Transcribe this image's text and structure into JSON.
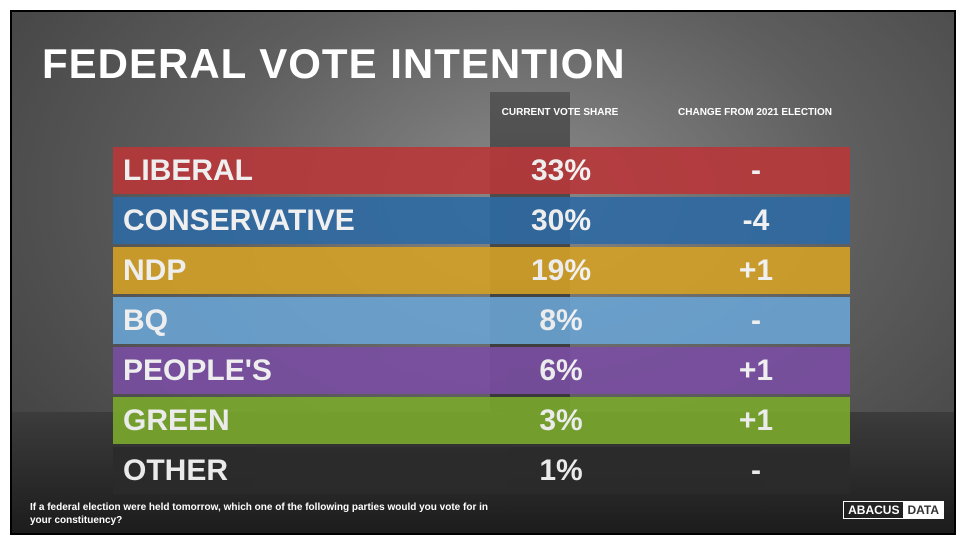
{
  "header": {
    "title": "FEDERAL VOTE INTENTION"
  },
  "table": {
    "columns": [
      "CURRENT VOTE SHARE",
      "CHANGE FROM 2021 ELECTION"
    ],
    "rows": [
      {
        "party": "LIBERAL",
        "share": "33%",
        "change": "-",
        "color": "#b9373a"
      },
      {
        "party": "CONSERVATIVE",
        "share": "30%",
        "change": "-4",
        "color": "#2e6aa3"
      },
      {
        "party": "NDP",
        "share": "19%",
        "change": "+1",
        "color": "#d4a126"
      },
      {
        "party": "BQ",
        "share": "8%",
        "change": "-",
        "color": "#6aa4d4"
      },
      {
        "party": "PEOPLE'S",
        "share": "6%",
        "change": "+1",
        "color": "#7a4ea3"
      },
      {
        "party": "GREEN",
        "share": "3%",
        "change": "+1",
        "color": "#7aa92c"
      },
      {
        "party": "OTHER",
        "share": "1%",
        "change": "-",
        "color": "#2b2b2b"
      }
    ]
  },
  "footer": {
    "question": "If a federal election were held tomorrow, which one of the following parties would you vote for in your constituency?",
    "logo": [
      "ABACUS",
      "DATA"
    ]
  }
}
